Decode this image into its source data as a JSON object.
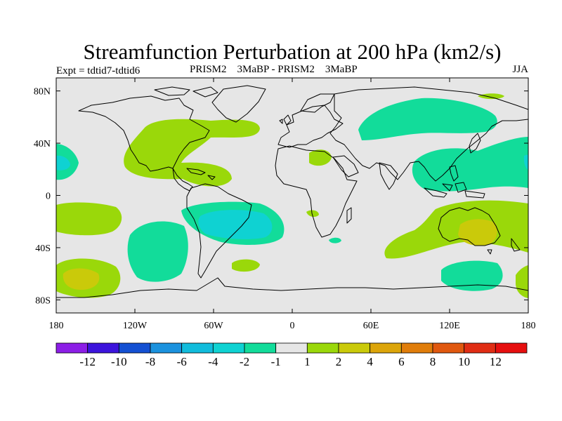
{
  "chart_data": {
    "type": "filled-contour-map",
    "title": "Streamfunction Perturbation at 200 hPa (km2/s)",
    "left_label": "Expt = tdtid7-tdtid6",
    "center_label": "PRISM2    3MaBP - PRISM2    3MaBP",
    "right_label": "JJA",
    "projection": "cylindrical-equidistant",
    "lon_range": [
      -180,
      180
    ],
    "lat_range": [
      -90,
      90
    ],
    "x_ticks": [
      "180",
      "120W",
      "60W",
      "0",
      "60E",
      "120E",
      "180"
    ],
    "x_tick_values": [
      -180,
      -120,
      -60,
      0,
      60,
      120,
      180
    ],
    "y_ticks": [
      "80N",
      "40N",
      "0",
      "40S",
      "80S"
    ],
    "y_tick_values": [
      80,
      40,
      0,
      -40,
      -80
    ],
    "colorbar": {
      "levels": [
        "-12",
        "-10",
        "-8",
        "-6",
        "-4",
        "-2",
        "-1",
        "1",
        "2",
        "4",
        "6",
        "8",
        "10",
        "12"
      ],
      "colors": [
        "#8C1EE6",
        "#3C14DC",
        "#1450D2",
        "#1B92DE",
        "#11BCDC",
        "#0FD2D2",
        "#12DC9A",
        "#E6E6E6",
        "#9AD80A",
        "#CACA0A",
        "#DCA50A",
        "#E07D0A",
        "#E0580F",
        "#E02D14",
        "#E60F0F"
      ]
    },
    "features": [
      {
        "name": "North Atlantic / eastern North America",
        "class": "1 to 2",
        "lon": [
          -100,
          -40
        ],
        "lat": [
          15,
          60
        ]
      },
      {
        "name": "North Pacific west of Mexico",
        "class": "1 to 2",
        "lon": [
          -130,
          -95
        ],
        "lat": [
          10,
          45
        ]
      },
      {
        "name": "Subtropical North Atlantic",
        "class": "1 to 2",
        "lon": [
          -55,
          -10
        ],
        "lat": [
          15,
          50
        ]
      },
      {
        "name": "Western South Atlantic",
        "class": "-4 to -2",
        "lon": [
          -55,
          -5
        ],
        "lat": [
          -30,
          -15
        ]
      },
      {
        "name": "Southeast Pacific",
        "class": "-2 to -1",
        "lon": [
          -120,
          -85
        ],
        "lat": [
          -60,
          -30
        ]
      },
      {
        "name": "East Asia / West Pacific",
        "class": "-2 to -1",
        "lon": [
          100,
          180
        ],
        "lat": [
          5,
          50
        ]
      },
      {
        "name": "Eurasia",
        "class": "-2 to -1",
        "lon": [
          35,
          125
        ],
        "lat": [
          45,
          70
        ]
      },
      {
        "name": "Australia",
        "class": "2 to 4",
        "lon": [
          115,
          160
        ],
        "lat": [
          -40,
          -15
        ]
      },
      {
        "name": "Southern Ocean south of Australia",
        "class": "-2 to -1",
        "lon": [
          115,
          150
        ],
        "lat": [
          -75,
          -55
        ]
      },
      {
        "name": "South Pacific",
        "class": "2 to 4",
        "lon": [
          -180,
          -140
        ],
        "lat": [
          -75,
          -50
        ]
      },
      {
        "name": "Tropical eastern Pacific",
        "class": "-2 to -1",
        "lon": [
          -180,
          -170
        ],
        "lat": [
          15,
          35
        ]
      }
    ]
  }
}
